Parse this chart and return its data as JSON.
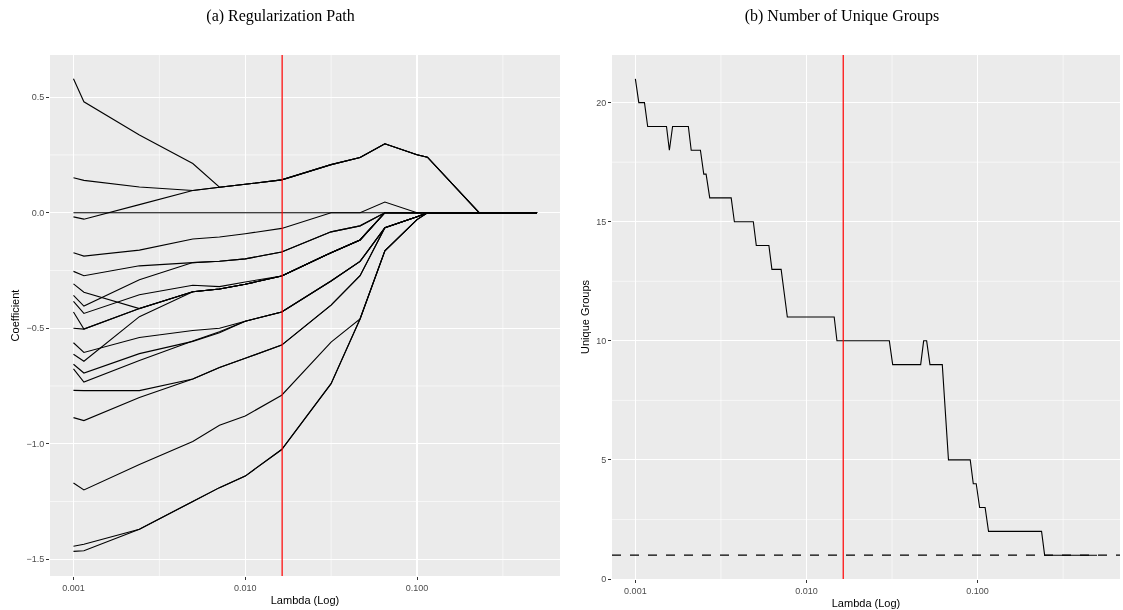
{
  "chart_data": [
    {
      "type": "line",
      "title": "(a) Regularization Path",
      "xlabel": "Lambda (Log)",
      "ylabel": "Coefficient",
      "log": "x",
      "grid": true,
      "xlim": [
        0.00073,
        0.68
      ],
      "xticks": [
        {
          "value": 0.001,
          "label": "0.001"
        },
        {
          "value": 0.01,
          "label": "0.010"
        },
        {
          "value": 0.1,
          "label": "0.100"
        }
      ],
      "ylim": [
        -1.5725,
        0.6825
      ],
      "yticks": [
        {
          "value": -1.5,
          "label": "−1.5"
        },
        {
          "value": -1,
          "label": "−1.0"
        },
        {
          "value": -0.5,
          "label": "−0.5"
        },
        {
          "value": 0,
          "label": "0.0"
        },
        {
          "value": 0.5,
          "label": "0.5"
        }
      ],
      "x": [
        0.001,
        0.00115,
        0.00242,
        0.00495,
        0.00708,
        0.01,
        0.0163,
        0.0316,
        0.0466,
        0.065,
        0.1,
        0.115,
        0.23,
        0.5
      ],
      "series": [
        {
          "color": "#000000",
          "values": [
            0.58,
            0.48,
            0.336,
            0.213,
            0.11,
            0.123,
            0.142,
            0.208,
            0.239,
            0.298,
            0.251,
            0.24,
            0,
            0
          ]
        },
        {
          "color": "#000000",
          "values": [
            0.151,
            0.14,
            0.111,
            0.096,
            0.11,
            0.123,
            0.142,
            0.208,
            0.239,
            0.298,
            0.251,
            0.24,
            0,
            0
          ]
        },
        {
          "color": "#000000",
          "values": [
            -0.018,
            -0.028,
            0.035,
            0.096,
            0.11,
            0.123,
            0.142,
            0.208,
            0.239,
            0.298,
            0.251,
            0.24,
            0,
            0
          ]
        },
        {
          "color": "#000000",
          "values": [
            0,
            0,
            0,
            0,
            0,
            0,
            0,
            0,
            0,
            0,
            0,
            0,
            0,
            0
          ]
        },
        {
          "color": "#000000",
          "values": [
            -0.173,
            -0.188,
            -0.162,
            -0.114,
            -0.105,
            -0.091,
            -0.068,
            0,
            0,
            0.046,
            0,
            0,
            0,
            0
          ]
        },
        {
          "color": "#000000",
          "values": [
            -0.254,
            -0.273,
            -0.23,
            -0.216,
            -0.21,
            -0.2,
            -0.17,
            -0.083,
            -0.057,
            0,
            0,
            0,
            0,
            0
          ]
        },
        {
          "color": "#000000",
          "values": [
            -0.358,
            -0.404,
            -0.29,
            -0.216,
            -0.21,
            -0.2,
            -0.17,
            -0.083,
            -0.057,
            0,
            0,
            0,
            0,
            0
          ]
        },
        {
          "color": "#000000",
          "values": [
            -0.384,
            -0.436,
            -0.355,
            -0.314,
            -0.32,
            -0.3,
            -0.274,
            -0.173,
            -0.118,
            0,
            0,
            0,
            0,
            0
          ]
        },
        {
          "color": "#000000",
          "values": [
            -0.308,
            -0.344,
            -0.415,
            -0.342,
            -0.33,
            -0.31,
            -0.274,
            -0.173,
            -0.118,
            0,
            0,
            0,
            0,
            0
          ]
        },
        {
          "color": "#000000",
          "values": [
            -0.43,
            -0.504,
            -0.415,
            -0.342,
            -0.33,
            -0.31,
            -0.274,
            -0.173,
            -0.118,
            0,
            0,
            0,
            0,
            0
          ]
        },
        {
          "color": "#000000",
          "values": [
            -0.5,
            -0.504,
            -0.415,
            -0.342,
            -0.33,
            -0.31,
            -0.274,
            -0.173,
            -0.118,
            0,
            0,
            0,
            0,
            0
          ]
        },
        {
          "color": "#000000",
          "values": [
            -0.613,
            -0.643,
            -0.45,
            -0.342,
            -0.33,
            -0.31,
            -0.274,
            -0.173,
            -0.118,
            0,
            0,
            0,
            0,
            0
          ]
        },
        {
          "color": "#000000",
          "values": [
            -0.563,
            -0.605,
            -0.54,
            -0.51,
            -0.5,
            -0.47,
            -0.43,
            -0.296,
            -0.211,
            -0.065,
            -0.018,
            0,
            0,
            0
          ]
        },
        {
          "color": "#000000",
          "values": [
            -0.656,
            -0.694,
            -0.61,
            -0.557,
            -0.52,
            -0.47,
            -0.43,
            -0.296,
            -0.211,
            -0.065,
            -0.018,
            0,
            0,
            0
          ]
        },
        {
          "color": "#000000",
          "values": [
            -0.676,
            -0.733,
            -0.64,
            -0.555,
            -0.515,
            -0.47,
            -0.43,
            -0.296,
            -0.211,
            -0.065,
            -0.018,
            0,
            0,
            0
          ]
        },
        {
          "color": "#000000",
          "values": [
            -0.769,
            -0.77,
            -0.77,
            -0.72,
            -0.67,
            -0.63,
            -0.573,
            -0.4,
            -0.273,
            -0.065,
            -0.018,
            0,
            0,
            0
          ]
        },
        {
          "color": "#000000",
          "values": [
            -0.887,
            -0.9,
            -0.8,
            -0.72,
            -0.67,
            -0.63,
            -0.573,
            -0.4,
            -0.273,
            -0.065,
            -0.018,
            0,
            0,
            0
          ]
        },
        {
          "color": "#000000",
          "values": [
            -1.17,
            -1.2,
            -1.09,
            -0.99,
            -0.92,
            -0.88,
            -0.79,
            -0.56,
            -0.46,
            -0.165,
            -0.03,
            0,
            0,
            0
          ]
        },
        {
          "color": "#000000",
          "values": [
            -1.444,
            -1.435,
            -1.37,
            -1.25,
            -1.19,
            -1.14,
            -1.025,
            -0.74,
            -0.46,
            -0.165,
            -0.03,
            0,
            0,
            0
          ]
        },
        {
          "color": "#000000",
          "values": [
            -1.466,
            -1.463,
            -1.37,
            -1.25,
            -1.19,
            -1.14,
            -1.025,
            -0.74,
            -0.46,
            -0.165,
            -0.03,
            0,
            0,
            0
          ]
        }
      ],
      "ref_lines": [
        {
          "axis": "x",
          "value": 0.0164,
          "color": "#ff0000",
          "line_style": "solid"
        }
      ]
    },
    {
      "type": "line",
      "title": "(b) Number of Unique Groups",
      "xlabel": "Lambda (Log)",
      "ylabel": "Unique Groups",
      "log": "x",
      "grid": true,
      "xlim": [
        0.00073,
        0.68
      ],
      "xticks": [
        {
          "value": 0.001,
          "label": "0.001"
        },
        {
          "value": 0.01,
          "label": "0.010"
        },
        {
          "value": 0.1,
          "label": "0.100"
        }
      ],
      "ylim": [
        0,
        22
      ],
      "yticks": [
        0,
        5,
        10,
        15,
        20
      ],
      "series": [
        {
          "color": "#000000",
          "x": [
            0.001,
            0.001047,
            0.00113,
            0.00118,
            0.00152,
            0.00158,
            0.00165,
            0.00204,
            0.00212,
            0.0024,
            0.00251,
            0.00259,
            0.00272,
            0.00363,
            0.00379,
            0.00489,
            0.00509,
            0.00603,
            0.00628,
            0.00711,
            0.00773,
            0.01452,
            0.01507,
            0.0305,
            0.0319,
            0.0465,
            0.0484,
            0.0504,
            0.0527,
            0.0622,
            0.0676,
            0.0906,
            0.0944,
            0.0982,
            0.1028,
            0.1107,
            0.1159,
            0.2366,
            0.2466,
            0.499
          ],
          "values": [
            21,
            20,
            20,
            19,
            19,
            18,
            19,
            19,
            18,
            18,
            17,
            17,
            16,
            16,
            15,
            15,
            14,
            14,
            13,
            13,
            11,
            11,
            10,
            10,
            9,
            9,
            10,
            10,
            9,
            9,
            5,
            5,
            4,
            4,
            3,
            3,
            2,
            2,
            1,
            1
          ]
        }
      ],
      "ref_lines": [
        {
          "axis": "x",
          "value": 0.0164,
          "color": "#ff0000",
          "line_style": "solid"
        },
        {
          "axis": "y",
          "value": 1,
          "color": "#000000",
          "line_style": "dashed"
        }
      ]
    }
  ]
}
